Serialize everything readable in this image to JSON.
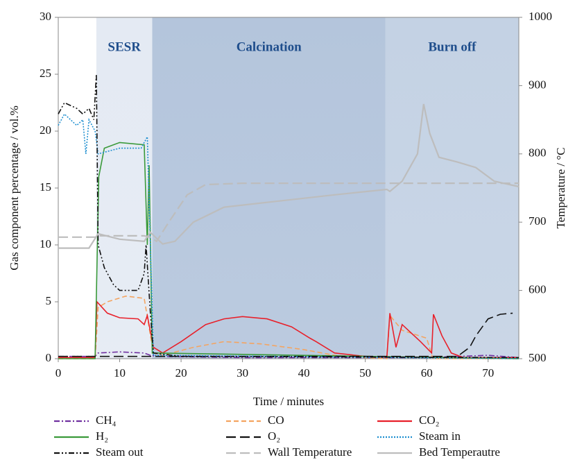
{
  "chart_data": {
    "type": "line",
    "xlabel": "Time / minutes",
    "ylabel": "Gas component percentage / vol.%",
    "y2label": "Temperature / °C",
    "xlim": [
      0,
      75
    ],
    "xticks": [
      0,
      10,
      20,
      30,
      40,
      50,
      60,
      70
    ],
    "ylim": [
      0,
      30
    ],
    "yticks": [
      0,
      5,
      10,
      15,
      20,
      25,
      30
    ],
    "y2lim": [
      500,
      1000
    ],
    "y2ticks": [
      500,
      600,
      700,
      800,
      900,
      1000
    ],
    "regions": [
      {
        "label": "SESR",
        "start": 6.2,
        "end": 15.3,
        "color": "#e4eaf3"
      },
      {
        "label": "Calcination",
        "start": 15.3,
        "end": 53.3,
        "color": "#b4c5dc"
      },
      {
        "label": "Burn off",
        "start": 53.3,
        "end": 75,
        "color": "#c4d2e4"
      }
    ],
    "series": [
      {
        "name": "CH₄",
        "color": "#7030a0",
        "dash": "dash-dot",
        "x": [
          0,
          6,
          6.5,
          10,
          14,
          15,
          16,
          30,
          50,
          54,
          60,
          70,
          75
        ],
        "values": [
          0.2,
          0.2,
          0.5,
          0.6,
          0.5,
          0.3,
          0.2,
          0.1,
          0.1,
          0.1,
          0.1,
          0.3,
          0.1
        ]
      },
      {
        "name": "CO",
        "color": "#f4a460",
        "dash": "dash",
        "x": [
          0,
          6,
          6.5,
          8,
          11,
          14,
          15.5,
          17,
          22,
          27,
          33,
          40,
          45,
          50,
          53.5,
          54,
          56,
          60,
          61,
          75
        ],
        "values": [
          0,
          0,
          4.5,
          5,
          5.5,
          5.3,
          0.5,
          0.3,
          1,
          1.5,
          1.3,
          0.8,
          0.3,
          0.1,
          0,
          3.8,
          2.5,
          1.8,
          0,
          0
        ]
      },
      {
        "name": "CO₂",
        "color": "#e8202a",
        "dash": "solid",
        "x": [
          0,
          6,
          6.3,
          8,
          10,
          13,
          14,
          14.5,
          15.5,
          17,
          20,
          24,
          27,
          30,
          34,
          38,
          41,
          42,
          45,
          50,
          53.5,
          54,
          55,
          56,
          59,
          60.8,
          61.1,
          62.5,
          64,
          66,
          75
        ],
        "values": [
          0.1,
          0.1,
          5,
          4,
          3.6,
          3.5,
          3,
          3.8,
          1,
          0.5,
          1.5,
          3,
          3.5,
          3.7,
          3.5,
          2.8,
          1.8,
          1.5,
          0.5,
          0.2,
          0.1,
          4,
          1,
          3,
          1.5,
          0.5,
          3.9,
          2,
          0.5,
          0.1,
          0.1
        ]
      },
      {
        "name": "H₂",
        "color": "#3a9a3a",
        "dash": "solid",
        "x": [
          0,
          6,
          6.6,
          7.5,
          10,
          14,
          14.5,
          14.8,
          15.3,
          75
        ],
        "values": [
          0,
          0,
          16,
          18.5,
          19,
          18.8,
          10,
          17,
          0.5,
          0
        ]
      },
      {
        "name": "O₂",
        "color": "#111111",
        "dash": "long-dash",
        "x": [
          0,
          6,
          65,
          67,
          68,
          70,
          72,
          74
        ],
        "values": [
          0.2,
          0.2,
          0.2,
          1,
          2,
          3.5,
          3.9,
          4
        ]
      },
      {
        "name": "Steam in",
        "color": "#1f8fd0",
        "dash": "dot",
        "x": [
          0,
          1,
          3,
          4,
          4.5,
          5,
          6,
          6.5,
          10,
          13.5,
          14.5,
          15.5,
          75
        ],
        "values": [
          20.5,
          21.5,
          20.5,
          21,
          18,
          21,
          20,
          18,
          18.5,
          18.5,
          19.5,
          0.3,
          0
        ]
      },
      {
        "name": "Steam out",
        "color": "#111111",
        "dash": "dash-dot-dot",
        "x": [
          0,
          1,
          3,
          4,
          5,
          5.8,
          6.2,
          6.5,
          7.5,
          9,
          10,
          13,
          14,
          14.3,
          15,
          15.5,
          20,
          75
        ],
        "values": [
          21.5,
          22.5,
          22,
          21.5,
          22,
          21,
          25,
          10,
          8,
          6.5,
          6,
          6,
          7.5,
          10,
          4,
          0.5,
          0.2,
          0.1
        ]
      },
      {
        "name": "Wall Temperature",
        "color": "#bdbdbd",
        "dash": "long-dash",
        "axis": "y2",
        "x": [
          0,
          6,
          6.5,
          14,
          15,
          16,
          18,
          21,
          24,
          30,
          75
        ],
        "values": [
          678,
          678,
          680,
          680,
          678,
          672,
          700,
          740,
          755,
          757,
          757
        ]
      },
      {
        "name": "Bed Temperautre",
        "color": "#bdbdbd",
        "dash": "solid",
        "axis": "y2",
        "x": [
          0,
          5,
          6.5,
          10,
          14,
          15,
          17,
          19,
          22,
          27,
          35,
          45,
          53.5,
          54,
          56,
          58.5,
          59.5,
          60.5,
          62,
          65,
          68,
          71,
          75
        ],
        "values": [
          662,
          662,
          683,
          675,
          672,
          685,
          668,
          672,
          700,
          722,
          730,
          740,
          748,
          745,
          760,
          800,
          873,
          830,
          795,
          788,
          780,
          760,
          752
        ]
      }
    ]
  }
}
